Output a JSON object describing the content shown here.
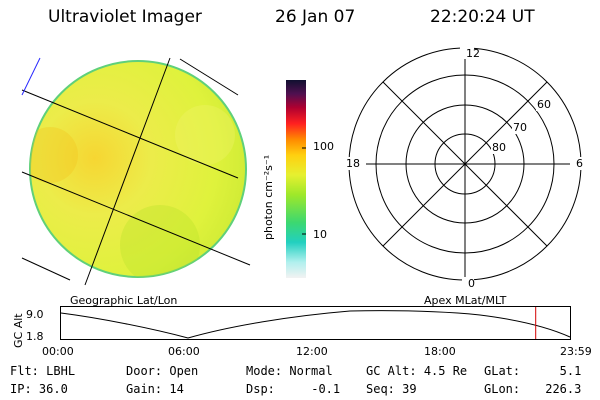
{
  "header": {
    "title": "Ultraviolet Imager",
    "date": "26 Jan 07",
    "time": "22:20:24 UT"
  },
  "colorbar": {
    "unit_label": "photon cm⁻²s⁻¹",
    "tick_labels": [
      "100",
      "10"
    ]
  },
  "polar_plot": {
    "mlt_labels": {
      "top": "12",
      "bottom": "0",
      "left": "18",
      "right": "6"
    },
    "lat_labels": [
      "60",
      "70",
      "80"
    ]
  },
  "map_labels": {
    "left": "Geographic Lat/Lon",
    "right": "Apex MLat/MLT"
  },
  "altitude_plot": {
    "ylabel": "GC Alt",
    "ytick_labels": [
      "9.0",
      "1.8"
    ],
    "xtick_labels": [
      "00:00",
      "06:00",
      "12:00",
      "18:00",
      "23:59"
    ],
    "current_marker_hours": 22.34,
    "marker_color": "#d40000"
  },
  "status": {
    "row1": [
      {
        "label": "Flt:",
        "value": "LBHL"
      },
      {
        "label": "Door:",
        "value": "Open"
      },
      {
        "label": "Mode:",
        "value": "Normal"
      },
      {
        "label": "GC Alt:",
        "value": "4.5 Re"
      },
      {
        "label": "GLat:",
        "value": "5.1"
      }
    ],
    "row2": [
      {
        "label": "IP:",
        "value": "36.0"
      },
      {
        "label": "Gain:",
        "value": "14"
      },
      {
        "label": "Dsp:",
        "value": "-0.1"
      },
      {
        "label": "Seq:",
        "value": "39"
      },
      {
        "label": "GLon:",
        "value": "226.3"
      }
    ]
  }
}
